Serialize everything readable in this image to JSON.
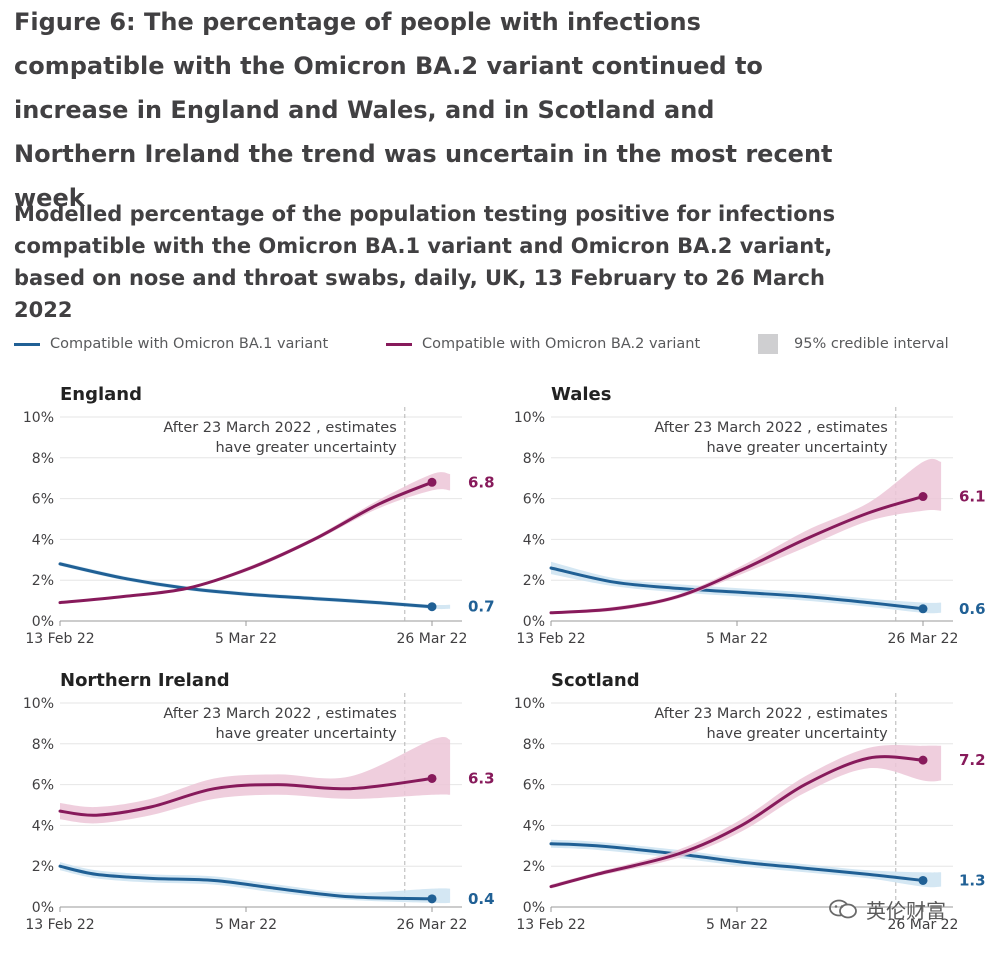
{
  "figure_title": "Figure 6: The percentage of people with infections compatible with the Omicron BA.2 variant continued to increase in England and Wales, and in Scotland and Northern Ireland the trend was uncertain in the most recent week",
  "subtitle": "Modelled percentage of the population testing positive for infections compatible with the Omicron BA.1 variant and Omicron BA.2 variant, based on nose and throat swabs, daily, UK, 13 February to 26 March 2022",
  "legend": {
    "ba1": "Compatible with Omicron BA.1 variant",
    "ba2": "Compatible with Omicron BA.2 variant",
    "ci": "95% credible interval"
  },
  "colors": {
    "ba1": "#206095",
    "ba2": "#871a5b",
    "ba1_ci": "#cde3f1",
    "ba2_ci": "#ecc6d7"
  },
  "watermark": "英伦财富",
  "chart_data": [
    {
      "type": "line",
      "title": "England",
      "x": [
        0,
        7,
        14,
        21,
        28,
        35,
        41
      ],
      "x_ticks": [
        "13 Feb 22",
        "5 Mar 22",
        "26 Mar 22"
      ],
      "ylim": [
        0,
        10
      ],
      "y_ticks": [
        "0%",
        "2%",
        "4%",
        "6%",
        "8%",
        "10%"
      ],
      "annotation": [
        "After 23 March 2022 , estimates",
        "have greater uncertainty"
      ],
      "series": [
        {
          "name": "Compatible with Omicron BA.1 variant",
          "values": [
            2.8,
            2.1,
            1.6,
            1.3,
            1.1,
            0.9,
            0.7
          ],
          "ci_low": [
            2.7,
            2.0,
            1.5,
            1.2,
            1.0,
            0.8,
            0.6
          ],
          "ci_high": [
            2.9,
            2.2,
            1.7,
            1.4,
            1.2,
            1.0,
            0.8
          ],
          "end_label": "0.7"
        },
        {
          "name": "Compatible with Omicron BA.2 variant",
          "values": [
            0.9,
            1.2,
            1.6,
            2.6,
            4.0,
            5.7,
            6.8
          ],
          "ci_low": [
            0.85,
            1.15,
            1.55,
            2.5,
            3.9,
            5.5,
            6.4
          ],
          "ci_high": [
            0.95,
            1.25,
            1.65,
            2.7,
            4.1,
            5.9,
            7.2
          ],
          "end_label": "6.8"
        }
      ]
    },
    {
      "type": "line",
      "title": "Wales",
      "x": [
        0,
        7,
        14,
        21,
        28,
        35,
        41
      ],
      "x_ticks": [
        "13 Feb 22",
        "5 Mar 22",
        "26 Mar 22"
      ],
      "ylim": [
        0,
        10
      ],
      "y_ticks": [
        "0%",
        "2%",
        "4%",
        "6%",
        "8%",
        "10%"
      ],
      "annotation": [
        "After 23 March 2022 , estimates",
        "have greater uncertainty"
      ],
      "series": [
        {
          "name": "Compatible with Omicron BA.1 variant",
          "values": [
            2.6,
            1.9,
            1.6,
            1.4,
            1.2,
            0.9,
            0.6
          ],
          "ci_low": [
            2.3,
            1.7,
            1.4,
            1.2,
            1.0,
            0.7,
            0.4
          ],
          "ci_high": [
            2.9,
            2.1,
            1.8,
            1.6,
            1.4,
            1.1,
            0.9
          ],
          "end_label": "0.6"
        },
        {
          "name": "Compatible with Omicron BA.2 variant",
          "values": [
            0.4,
            0.6,
            1.2,
            2.5,
            4.0,
            5.3,
            6.1
          ],
          "ci_low": [
            0.35,
            0.5,
            1.1,
            2.3,
            3.6,
            4.9,
            5.4
          ],
          "ci_high": [
            0.45,
            0.7,
            1.3,
            2.7,
            4.4,
            5.8,
            7.8
          ],
          "end_label": "6.1"
        }
      ]
    },
    {
      "type": "line",
      "title": "Northern Ireland",
      "x": [
        0,
        4,
        10,
        17,
        24,
        32,
        41
      ],
      "x_ticks": [
        "13 Feb 22",
        "5 Mar 22",
        "26 Mar 22"
      ],
      "ylim": [
        0,
        10
      ],
      "y_ticks": [
        "0%",
        "2%",
        "4%",
        "6%",
        "8%",
        "10%"
      ],
      "annotation": [
        "After 23 March 2022 , estimates",
        "have greater uncertainty"
      ],
      "series": [
        {
          "name": "Compatible with Omicron BA.1 variant",
          "values": [
            2.0,
            1.6,
            1.4,
            1.3,
            0.9,
            0.5,
            0.4
          ],
          "ci_low": [
            1.8,
            1.4,
            1.2,
            1.1,
            0.7,
            0.35,
            0.2
          ],
          "ci_high": [
            2.2,
            1.8,
            1.6,
            1.5,
            1.1,
            0.7,
            0.9
          ],
          "end_label": "0.4"
        },
        {
          "name": "Compatible with Omicron BA.2 variant",
          "values": [
            4.7,
            4.5,
            4.9,
            5.8,
            6.0,
            5.8,
            6.3
          ],
          "ci_low": [
            4.3,
            4.1,
            4.5,
            5.3,
            5.5,
            5.3,
            5.5
          ],
          "ci_high": [
            5.1,
            4.9,
            5.3,
            6.3,
            6.5,
            6.4,
            8.2
          ],
          "end_label": "6.3"
        }
      ]
    },
    {
      "type": "line",
      "title": "Scotland",
      "x": [
        0,
        5,
        14,
        21,
        28,
        35,
        41
      ],
      "x_ticks": [
        "13 Feb 22",
        "5 Mar 22",
        "26 Mar 22"
      ],
      "ylim": [
        0,
        10
      ],
      "y_ticks": [
        "0%",
        "2%",
        "4%",
        "6%",
        "8%",
        "10%"
      ],
      "annotation": [
        "After 23 March 2022 , estimates",
        "have greater uncertainty"
      ],
      "series": [
        {
          "name": "Compatible with Omicron BA.1 variant",
          "values": [
            3.1,
            3.0,
            2.6,
            2.2,
            1.9,
            1.6,
            1.3
          ],
          "ci_low": [
            2.9,
            2.8,
            2.4,
            2.0,
            1.7,
            1.4,
            1.0
          ],
          "ci_high": [
            3.3,
            3.2,
            2.8,
            2.4,
            2.1,
            1.8,
            1.7
          ],
          "end_label": "1.3"
        },
        {
          "name": "Compatible with Omicron BA.2 variant",
          "values": [
            1.0,
            1.6,
            2.6,
            4.0,
            6.0,
            7.3,
            7.2
          ],
          "ci_low": [
            0.9,
            1.5,
            2.4,
            3.7,
            5.6,
            6.8,
            6.2
          ],
          "ci_high": [
            1.1,
            1.7,
            2.8,
            4.3,
            6.4,
            7.8,
            7.9
          ],
          "end_label": "7.2"
        }
      ]
    }
  ]
}
